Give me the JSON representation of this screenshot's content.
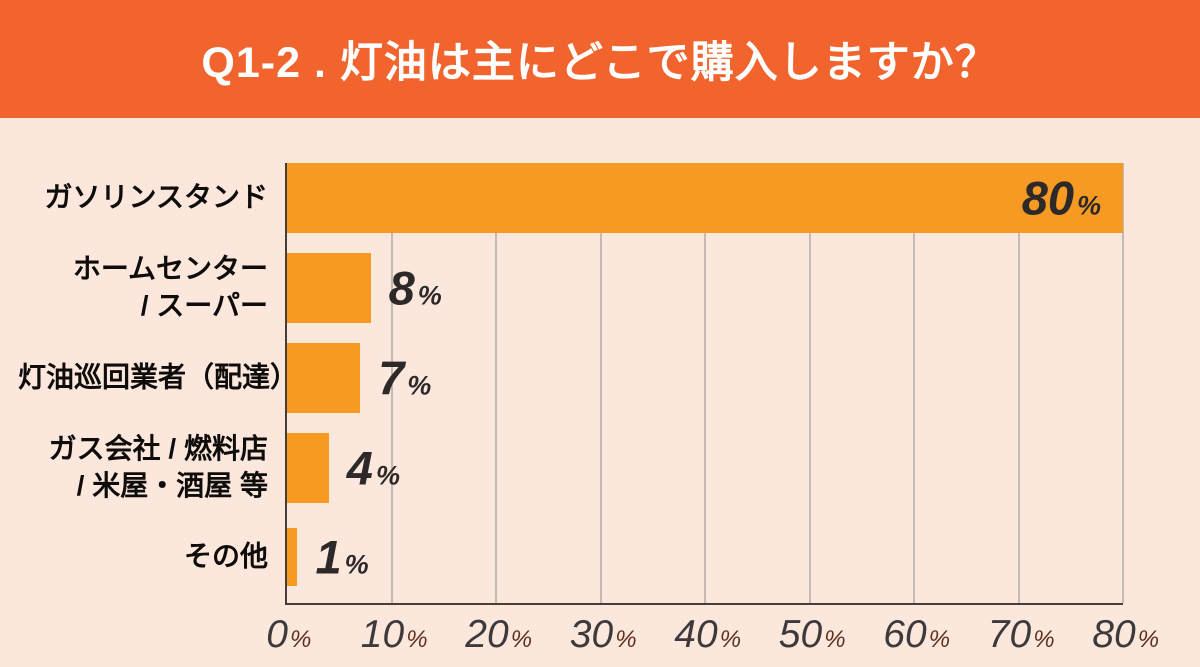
{
  "header": {
    "title": "Q1-2 . 灯油は主にどこで購入しますか？"
  },
  "colors": {
    "header_bg": "#F1642D",
    "page_bg": "#FBE7DB",
    "bar": "#F79A23",
    "grid": "#C3BAB4",
    "axis": "#453E38",
    "label_text": "#0F0D0C",
    "value_text": "#2D2928",
    "tick_text": "#3E3A3C",
    "tick_pct": "#5E3020",
    "title_text": "#FFFFFF"
  },
  "chart_data": {
    "type": "bar",
    "orientation": "horizontal",
    "title": "Q1-2 . 灯油は主にどこで購入しますか？",
    "categories": [
      {
        "id": "gas-station",
        "lines": [
          "ガソリンスタンド"
        ]
      },
      {
        "id": "home-center-super",
        "lines": [
          "ホームセンター",
          "/ スーパー"
        ]
      },
      {
        "id": "kerosene-delivery",
        "lines": [
          "灯油巡回業者（配達）"
        ]
      },
      {
        "id": "gas-company-fuel-store",
        "lines": [
          "ガス会社 / 燃料店",
          "/ 米屋・酒屋 等"
        ]
      },
      {
        "id": "other",
        "lines": [
          "その他"
        ]
      }
    ],
    "values": [
      80,
      8,
      7,
      4,
      1
    ],
    "unit": "%",
    "xlim": [
      0,
      80
    ],
    "x_ticks": [
      0,
      10,
      20,
      30,
      40,
      50,
      60,
      70,
      80
    ],
    "x_tick_suffix": "%",
    "grid": true,
    "legend": false,
    "value_label_positions": [
      "inside-end",
      "outside-end",
      "outside-end",
      "outside-end",
      "outside-end"
    ]
  }
}
